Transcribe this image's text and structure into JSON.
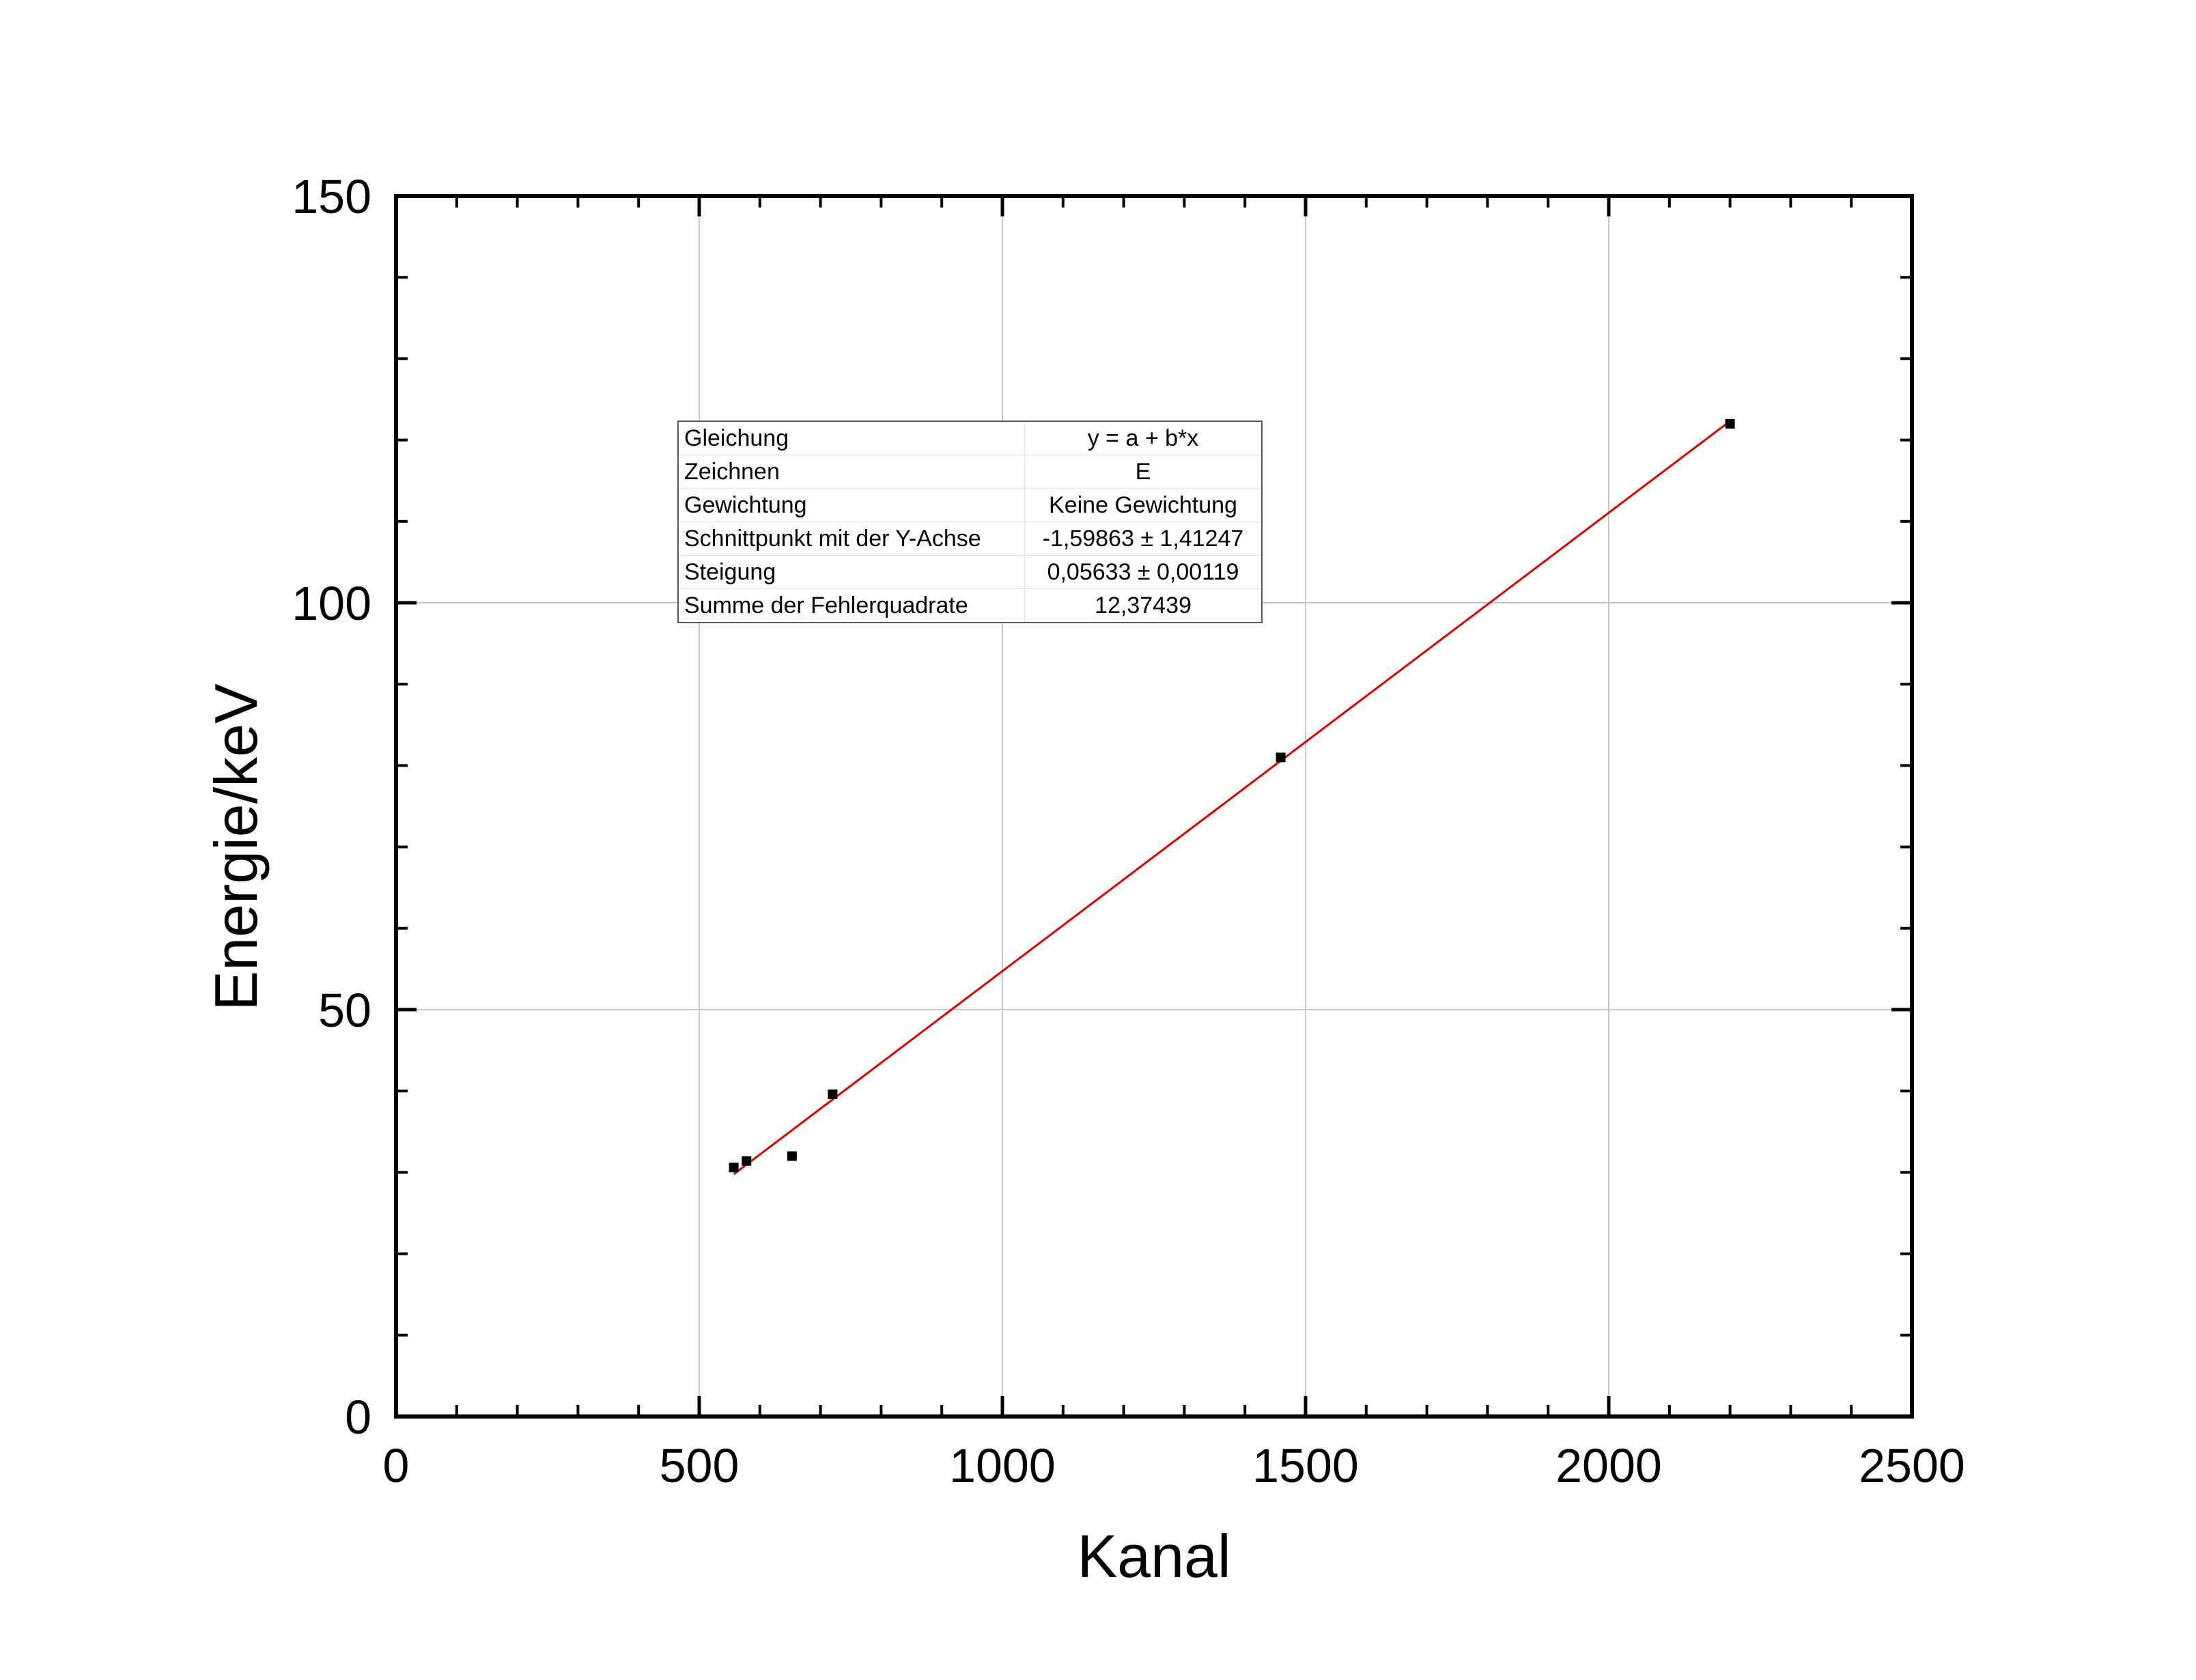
{
  "chart_data": {
    "type": "scatter",
    "xlabel": "Kanal",
    "ylabel": "Energie/keV",
    "xlim": [
      0,
      2500
    ],
    "ylim": [
      0,
      150
    ],
    "x_ticks": [
      0,
      500,
      1000,
      1500,
      2000,
      2500
    ],
    "y_ticks": [
      0,
      50,
      100,
      150
    ],
    "grid": true,
    "series": [
      {
        "x": [
          557,
          578,
          653,
          720,
          1459,
          2200
        ],
        "y": [
          30.6,
          31.4,
          32.0,
          39.6,
          81.0,
          122.0
        ],
        "marker": "square",
        "color": "#000000"
      }
    ],
    "fit_line": {
      "intercept": -1.59863,
      "slope": 0.05633,
      "x_range": [
        557,
        2200
      ],
      "color": "#e00000"
    },
    "fit_table": [
      {
        "key": "Gleichung",
        "value": "y = a + b*x"
      },
      {
        "key": "Zeichnen",
        "value": "E"
      },
      {
        "key": "Gewichtung",
        "value": "Keine Gewichtung"
      },
      {
        "key": "Schnittpunkt mit der Y-Achse",
        "value": "-1,59863 ± 1,41247"
      },
      {
        "key": "Steigung",
        "value": "0,05633 ± 0,00119"
      },
      {
        "key": "Summe der Fehlerquadrate",
        "value": "12,37439"
      }
    ]
  }
}
